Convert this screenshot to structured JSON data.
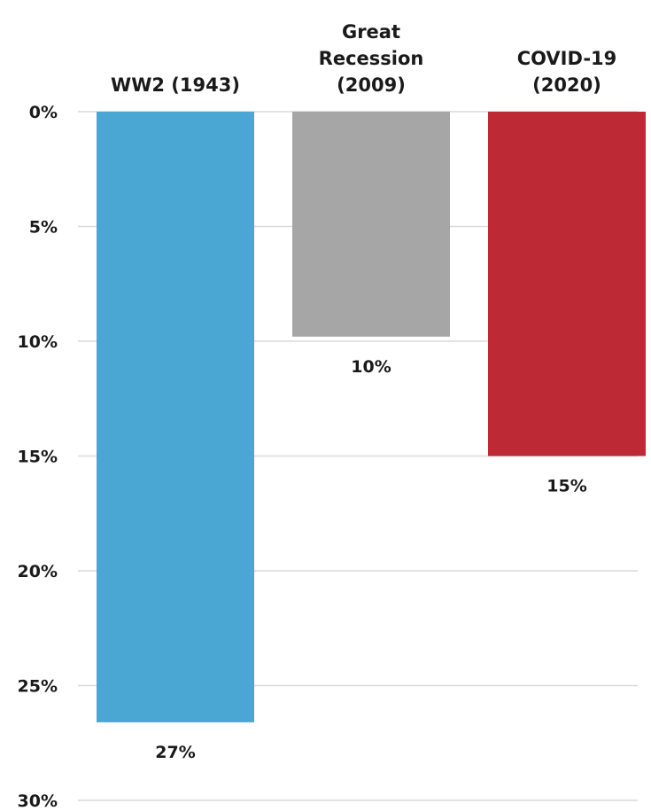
{
  "chart_data": {
    "type": "bar",
    "orientation": "downward",
    "categories": [
      [
        "WW2 (1943)"
      ],
      [
        "Great",
        "Recession",
        "(2009)"
      ],
      [
        "COVID-19",
        "(2020)"
      ]
    ],
    "values": [
      26.6,
      9.8,
      15.0
    ],
    "data_labels": [
      "27%",
      "10%",
      "15%"
    ],
    "colors": [
      "#4aa6d3",
      "#a6a6a6",
      "#bd2a35"
    ],
    "ylim": [
      0,
      30
    ],
    "y_ticks": [
      0,
      5,
      10,
      15,
      20,
      25,
      30
    ],
    "y_tick_labels": [
      "0%",
      "5%",
      "10%",
      "15%",
      "20%",
      "25%",
      "30%"
    ],
    "grid": true,
    "title": "",
    "xlabel": "",
    "ylabel": ""
  }
}
